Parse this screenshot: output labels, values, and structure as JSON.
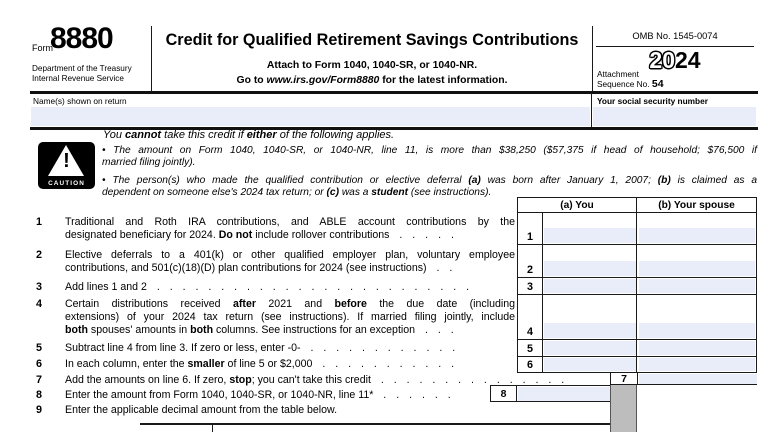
{
  "header": {
    "form_label": "Form",
    "form_number": "8880",
    "dept_line1": "Department of the Treasury",
    "dept_line2": "Internal Revenue Service",
    "title": "Credit for Qualified Retirement Savings Contributions",
    "attach_note": "Attach to Form 1040, 1040-SR, or 1040-NR.",
    "goto_prefix": "Go to ",
    "goto_link": "www.irs.gov/Form8880",
    "goto_suffix": " for the latest information.",
    "omb_number": "OMB No. 1545-0074",
    "tax_year_outline": "20",
    "tax_year_bold": "24",
    "attachment_label": "Attachment",
    "sequence_label": "Sequence No. ",
    "sequence_number": "54"
  },
  "identity": {
    "name_label": "Name(s) shown on return",
    "name_value": "",
    "ssn_label": "Your social security number",
    "ssn_value": ""
  },
  "caution": {
    "icon": "warning-triangle-icon",
    "badge": "CAUTION",
    "heading": [
      {
        "j": 0,
        "seg": [
          {
            "t": "You "
          },
          {
            "t": "cannot",
            "s": "b"
          },
          {
            "t": " take this credit if "
          },
          {
            "t": "either",
            "s": "b"
          },
          {
            "t": " of the following applies."
          }
        ]
      }
    ],
    "bullet1": [
      {
        "j": 1,
        "seg": [
          {
            "t": "• The amount on Form 1040, 1040-SR, or 1040-NR, line 11, is more than $38,250 ($57,375 if head of household; $76,500 if"
          }
        ]
      },
      {
        "j": 0,
        "seg": [
          {
            "t": "married filing jointly)."
          }
        ]
      }
    ],
    "bullet2": [
      {
        "j": 1,
        "seg": [
          {
            "t": "• The person(s) who made the qualified contribution or elective deferral "
          },
          {
            "t": "(a)",
            "s": "b"
          },
          {
            "t": " was born after January 1, 2007; "
          },
          {
            "t": "(b)",
            "s": "b"
          },
          {
            "t": " is claimed as a"
          }
        ]
      },
      {
        "j": 0,
        "seg": [
          {
            "t": "dependent on someone else's 2024 tax return; or "
          },
          {
            "t": "(c)",
            "s": "b"
          },
          {
            "t": " was a "
          },
          {
            "t": "student",
            "s": "b"
          },
          {
            "t": " (see instructions)."
          }
        ]
      }
    ]
  },
  "grid": {
    "col_a_header": "(a) You",
    "col_b_header": "(b) Your spouse"
  },
  "lines": [
    {
      "num": "1",
      "rows": [
        {
          "j": 1,
          "seg": [
            {
              "t": "Traditional and Roth IRA contributions, and ABLE account contributions by the"
            }
          ]
        },
        {
          "j": 0,
          "seg": [
            {
              "t": "designated beneficiary for 2024. "
            },
            {
              "t": "Do not",
              "s": "b"
            },
            {
              "t": " include rollover contributions"
            },
            {
              "t": " . . . . .",
              "s": "d"
            }
          ]
        }
      ],
      "fields": {
        "a": "",
        "b": ""
      }
    },
    {
      "num": "2",
      "rows": [
        {
          "j": 1,
          "seg": [
            {
              "t": "Elective deferrals to a 401(k) or other qualified employer plan, voluntary employee"
            }
          ]
        },
        {
          "j": 0,
          "seg": [
            {
              "t": "contributions, and 501(c)(18)(D) plan contributions for 2024 (see instructions)"
            },
            {
              "t": " . .",
              "s": "d"
            }
          ]
        }
      ],
      "fields": {
        "a": "",
        "b": ""
      }
    },
    {
      "num": "3",
      "rows": [
        {
          "j": 0,
          "seg": [
            {
              "t": "Add lines 1 and 2"
            },
            {
              "t": " . . . . . . . . . . . . . . . . . . . . . . . . .",
              "s": "d"
            }
          ]
        }
      ],
      "fields": {
        "a": "",
        "b": ""
      }
    },
    {
      "num": "4",
      "rows": [
        {
          "j": 1,
          "seg": [
            {
              "t": "Certain distributions received "
            },
            {
              "t": "after",
              "s": "b"
            },
            {
              "t": " 2021 and "
            },
            {
              "t": "before",
              "s": "b"
            },
            {
              "t": " the due date (including"
            }
          ]
        },
        {
          "j": 1,
          "seg": [
            {
              "t": "extensions) of your 2024 tax return (see instructions). If married filing jointly, include"
            }
          ]
        },
        {
          "j": 0,
          "seg": [
            {
              "t": "both",
              "s": "b"
            },
            {
              "t": " spouses' amounts in "
            },
            {
              "t": "both",
              "s": "b"
            },
            {
              "t": " columns. See instructions for an exception"
            },
            {
              "t": " . . .",
              "s": "d"
            }
          ]
        }
      ],
      "fields": {
        "a": "",
        "b": ""
      }
    },
    {
      "num": "5",
      "rows": [
        {
          "j": 0,
          "seg": [
            {
              "t": "Subtract line 4 from line 3. If zero or less, enter -0-"
            },
            {
              "t": " . . . . . . . . . . . .",
              "s": "d"
            }
          ]
        }
      ],
      "fields": {
        "a": "",
        "b": ""
      }
    },
    {
      "num": "6",
      "rows": [
        {
          "j": 0,
          "seg": [
            {
              "t": "In each column, enter the "
            },
            {
              "t": "smaller",
              "s": "b"
            },
            {
              "t": " of line 5 or $2,000"
            },
            {
              "t": " . . . . . . . . . . .",
              "s": "d"
            }
          ]
        }
      ],
      "fields": {
        "a": "",
        "b": ""
      }
    },
    {
      "num": "7",
      "rows": [
        {
          "j": 0,
          "seg": [
            {
              "t": "Add the amounts on line 6. If zero, "
            },
            {
              "t": "stop",
              "s": "b"
            },
            {
              "t": "; you can't take this credit"
            },
            {
              "t": " . . . . . . . . . . . . . . .",
              "s": "d"
            }
          ]
        }
      ],
      "fields": {
        "total": ""
      }
    },
    {
      "num": "8",
      "rows": [
        {
          "j": 0,
          "seg": [
            {
              "t": "Enter the amount from Form 1040, 1040-SR, or 1040-NR, line 11*"
            },
            {
              "t": " . . . . . .",
              "s": "d"
            }
          ]
        }
      ],
      "fields": {
        "amount": ""
      }
    },
    {
      "num": "9",
      "rows": [
        {
          "j": 0,
          "seg": [
            {
              "t": "Enter the applicable decimal amount from the table below."
            }
          ]
        }
      ]
    }
  ],
  "colors": {
    "field_fill": "#e9edf9",
    "blocked_fill": "#bdbdbd",
    "border": "#1a1a1a"
  }
}
